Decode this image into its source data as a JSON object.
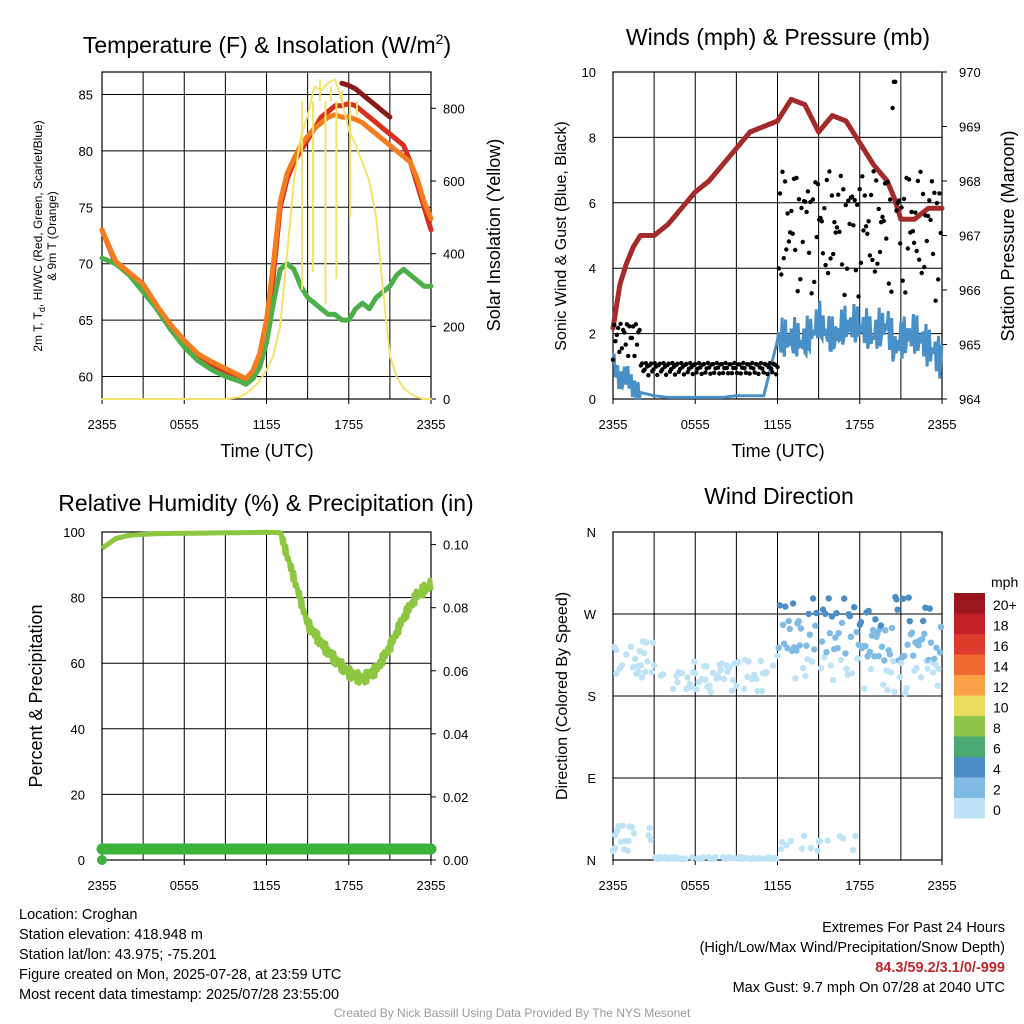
{
  "panels": {
    "temp": {
      "title_main": "Temperature (F) & Insolation (W/m",
      "title_sup": "2",
      "title_end": ")",
      "ylabel_l1": "2m T, T",
      "ylabel_sub": "d",
      "ylabel_l1b": ", HI/WC (Red, Green, Scarlet/Blue)",
      "ylabel_l2": "& 9m T (Orange)",
      "ylabel_right": "Solar Insolation (Yellow)",
      "xlabel": "Time (UTC)"
    },
    "wind": {
      "title": "Winds (mph) & Pressure (mb)",
      "ylabel_left": "Sonic Wind & Gust (Blue, Black)",
      "ylabel_right": "Station Pressure (Maroon)",
      "xlabel": "Time (UTC)"
    },
    "rh": {
      "title": "Relative Humidity (%) & Precipitation (in)",
      "ylabel_left": "Percent & Precipitation"
    },
    "dir": {
      "title": "Wind Direction",
      "ylabel_left": "Direction (Colored By Speed)",
      "legend_title": "mph"
    }
  },
  "chart_data": [
    {
      "type": "line",
      "title": "Temperature (F) & Insolation (W/m2)",
      "xlabel": "Time (UTC)",
      "x_ticks": [
        "2355",
        "0555",
        "1155",
        "1755",
        "2355"
      ],
      "ylim": [
        58,
        87
      ],
      "y_ticks": [
        60,
        65,
        70,
        75,
        80,
        85
      ],
      "y2lim": [
        0,
        900
      ],
      "y2_ticks": [
        0,
        200,
        400,
        600,
        800
      ],
      "x_hours": [
        0,
        1,
        2,
        3,
        4,
        5,
        6,
        7,
        8,
        9,
        10,
        10.5,
        11,
        11.5,
        12,
        12.5,
        13,
        13.5,
        14,
        14.5,
        15,
        15.5,
        16,
        16.5,
        17,
        17.5,
        18,
        18.5,
        19,
        19.5,
        20,
        20.5,
        21,
        21.5,
        22,
        22.5,
        23,
        23.5,
        24
      ],
      "series": [
        {
          "color": "#d7301f",
          "values": [
            73,
            70,
            69,
            68,
            66,
            64.2,
            62.8,
            61.6,
            61,
            60.4,
            59.8,
            59.5,
            60,
            61,
            63.5,
            69,
            75,
            77.5,
            79,
            80,
            81,
            82,
            83,
            83.5,
            84,
            84,
            84.2,
            84,
            83.5,
            83,
            82.5,
            82,
            81.5,
            81,
            80.5,
            79,
            77,
            75,
            73
          ]
        },
        {
          "color": "#8b1a1a",
          "values": [
            null,
            null,
            null,
            null,
            null,
            null,
            null,
            null,
            null,
            null,
            null,
            null,
            null,
            null,
            null,
            null,
            null,
            null,
            null,
            null,
            null,
            null,
            null,
            null,
            null,
            86,
            85.8,
            85.5,
            85,
            84.5,
            84,
            83.5,
            83
          ]
        },
        {
          "color": "#4daf4a",
          "values": [
            70.5,
            70,
            69,
            67.5,
            66,
            64.2,
            62.6,
            61.4,
            60.6,
            60,
            59.6,
            59.3,
            59.8,
            60.8,
            63,
            66.5,
            69.5,
            70,
            69.5,
            68,
            67,
            66.5,
            66,
            65.5,
            65.5,
            65,
            65,
            66,
            66.5,
            66,
            67,
            67.5,
            68,
            69,
            69.5,
            69,
            68.5,
            68,
            68
          ]
        },
        {
          "color": "#f47d20",
          "values": [
            73,
            70.2,
            69.2,
            68.2,
            66.3,
            64.6,
            63.2,
            62,
            61.3,
            60.7,
            60.1,
            59.8,
            60.5,
            62,
            65,
            70,
            75.5,
            78,
            79.3,
            80.5,
            81.3,
            82,
            82.5,
            83,
            83.2,
            83,
            83,
            82.8,
            82.5,
            82,
            81.5,
            81,
            80.5,
            80,
            79.5,
            79,
            77.5,
            75.5,
            74
          ]
        },
        {
          "color": "#f2e36b",
          "axis": "right",
          "values": [
            0,
            0,
            0,
            0,
            0,
            0,
            0,
            0,
            0,
            0,
            5,
            15,
            30,
            50,
            80,
            120,
            200,
            400,
            600,
            720,
            780,
            860,
            850,
            870,
            880,
            820,
            740,
            700,
            650,
            600,
            500,
            300,
            120,
            60,
            30,
            15,
            5,
            0,
            0
          ]
        }
      ]
    },
    {
      "type": "line",
      "title": "Winds (mph) & Pressure (mb)",
      "xlabel": "Time (UTC)",
      "x_ticks": [
        "2355",
        "0555",
        "1155",
        "1755",
        "2355"
      ],
      "ylim": [
        0,
        10
      ],
      "y_ticks": [
        0,
        2,
        4,
        6,
        8,
        10
      ],
      "y2lim": [
        964,
        970
      ],
      "y2_ticks": [
        964,
        965,
        966,
        967,
        968,
        969,
        970
      ],
      "x_hours": [
        0,
        0.5,
        1,
        1.5,
        2,
        3,
        4,
        5,
        6,
        7,
        8,
        9,
        10,
        11,
        12,
        13,
        14,
        15,
        16,
        17,
        18,
        19,
        20,
        20.5,
        21,
        22,
        23,
        24
      ],
      "series": [
        {
          "color": "#a52a2a",
          "axis": "right",
          "values": [
            965.3,
            966.1,
            966.5,
            966.8,
            967,
            967,
            967.2,
            967.5,
            967.8,
            968,
            968.3,
            968.6,
            968.9,
            969.0,
            969.1,
            969.5,
            969.4,
            968.9,
            969.2,
            969.1,
            968.7,
            968.3,
            968,
            967.7,
            967.3,
            967.3,
            967.5,
            967.5
          ]
        },
        {
          "color": "#4a90c8",
          "values": [
            1.2,
            0.5,
            0.8,
            0.3,
            0.2,
            0.1,
            0.05,
            0.05,
            0.05,
            0.05,
            0.05,
            0.1,
            0.1,
            0.1,
            1.8,
            1.8,
            1.7,
            2.3,
            1.8,
            2.2,
            2.2,
            1.9,
            2.3,
            1.5,
            1.8,
            2.0,
            1.6,
            1.2
          ]
        }
      ]
    },
    {
      "type": "line",
      "title": "Relative Humidity (%) & Precipitation (in)",
      "x_ticks": [
        "2355",
        "0555",
        "1155",
        "1755",
        "2355"
      ],
      "ylim": [
        0,
        100
      ],
      "y_ticks": [
        0,
        20,
        40,
        60,
        80,
        100
      ],
      "y2lim": [
        0,
        0.104
      ],
      "y2_ticks": [
        "0.00",
        "0.02",
        "0.04",
        "0.06",
        "0.08",
        "0.10"
      ],
      "x_hours": [
        0,
        0.5,
        1,
        2,
        3,
        4,
        6,
        8,
        10,
        12,
        13,
        14,
        15,
        16,
        17,
        18,
        19,
        20,
        21,
        22,
        23,
        24
      ],
      "series": [
        {
          "color": "#8dc63f",
          "values": [
            95,
            96.5,
            98,
            99,
            99.3,
            99.5,
            99.6,
            99.7,
            99.8,
            99.9,
            99.8,
            86,
            72,
            66,
            61,
            57,
            55,
            58,
            65,
            74,
            81,
            84
          ]
        },
        {
          "color": "#3bb33b",
          "axis": "right",
          "values": [
            0.0035,
            0.0035,
            0.0035,
            0.0035,
            0.0035,
            0.0035,
            0.0035,
            0.0035,
            0.0035,
            0.0035,
            0.0035,
            0.0035,
            0.0035,
            0.0035,
            0.0035,
            0.0035,
            0.0035,
            0.0035,
            0.0035,
            0.0035,
            0.0035,
            0.0035
          ]
        }
      ]
    },
    {
      "type": "scatter",
      "title": "Wind Direction",
      "ylabel": "Direction (Colored By Speed)",
      "x_ticks": [
        "2355",
        "0555",
        "1155",
        "1755",
        "2355"
      ],
      "y_ticks": [
        "N",
        "E",
        "S",
        "W",
        "N"
      ],
      "ylim": [
        0,
        360
      ],
      "legend_title": "mph",
      "legend": [
        {
          "label": "20+",
          "color": "#99161d"
        },
        {
          "label": "18",
          "color": "#c02026"
        },
        {
          "label": "16",
          "color": "#dc3b2c"
        },
        {
          "label": "14",
          "color": "#ef6a31"
        },
        {
          "label": "12",
          "color": "#f9a248"
        },
        {
          "label": "10",
          "color": "#e8dd60"
        },
        {
          "label": "8",
          "color": "#8fc549"
        },
        {
          "label": "6",
          "color": "#4aa872"
        },
        {
          "label": "4",
          "color": "#4b8dc6"
        },
        {
          "label": "2",
          "color": "#7fbbe4"
        },
        {
          "label": "0",
          "color": "#bfe3f6"
        }
      ]
    }
  ],
  "info": {
    "location": "Location: Croghan",
    "elevation": "Station elevation: 418.948 m",
    "latlon": "Station lat/lon: 43.975; -75.201",
    "created": "Figure created on Mon, 2025-07-28, at 23:59 UTC",
    "recent": "Most recent data timestamp: 2025/07/28 23:55:00"
  },
  "extremes": {
    "title": "Extremes For Past 24 Hours",
    "subtitle": "(High/Low/Max Wind/Precipitation/Snow Depth)",
    "values": "84.3/59.2/3.1/0/-999",
    "gust": "Max Gust: 9.7 mph On 07/28 at 2040 UTC"
  },
  "credit": "Created By Nick Bassill Using Data Provided By The NYS Mesonet"
}
